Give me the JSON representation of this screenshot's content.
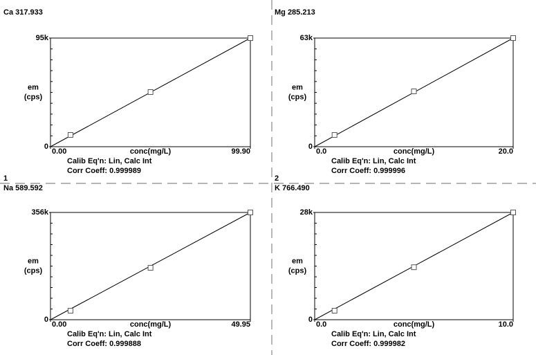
{
  "panel_numbers": [
    "1",
    "2"
  ],
  "chart_data": [
    {
      "type": "scatter",
      "title": "Ca 317.933",
      "xlabel": "conc(mg/L)",
      "ylabel": [
        "em",
        "(cps)"
      ],
      "annotations": [
        "Calib Eq'n: Lin, Calc Int",
        "Corr Coeff: 0.999989"
      ],
      "xlim": [
        0,
        99.9
      ],
      "xticks": [
        {
          "value": 0,
          "label": "0.00"
        },
        {
          "value": 99.9,
          "label": "99.90"
        }
      ],
      "ylim": [
        0,
        95000
      ],
      "yticks": [
        0,
        {
          "value": 95000,
          "label": "95k"
        }
      ],
      "x": [
        10,
        50,
        99.9
      ],
      "values": [
        10300,
        47800,
        95000
      ],
      "fit_line": {
        "x": [
          0,
          99.9
        ],
        "values": [
          0,
          95000
        ]
      }
    },
    {
      "type": "scatter",
      "title": "Mg 285.213",
      "xlabel": "conc(mg/L)",
      "ylabel": [
        "em",
        "(cps)"
      ],
      "annotations": [
        "Calib Eq'n: Lin, Calc Int",
        "Corr Coeff: 0.999996"
      ],
      "xlim": [
        0,
        20
      ],
      "xticks": [
        {
          "value": 0,
          "label": "0.0"
        },
        {
          "value": 20,
          "label": "20.0"
        }
      ],
      "ylim": [
        0,
        63000
      ],
      "yticks": [
        0,
        {
          "value": 63000,
          "label": "63k"
        }
      ],
      "x": [
        2,
        10,
        20
      ],
      "values": [
        6800,
        32100,
        63000
      ],
      "fit_line": {
        "x": [
          0,
          20
        ],
        "values": [
          0,
          63000
        ]
      }
    },
    {
      "type": "scatter",
      "title": "Na 589.592",
      "xlabel": "conc(mg/L)",
      "ylabel": [
        "em",
        "(cps)"
      ],
      "annotations": [
        "Calib Eq'n: Lin, Calc Int",
        "Corr Coeff: 0.999888"
      ],
      "xlim": [
        0,
        49.95
      ],
      "xticks": [
        {
          "value": 0,
          "label": "0.00"
        },
        {
          "value": 49.95,
          "label": "49.95"
        }
      ],
      "ylim": [
        0,
        356000
      ],
      "yticks": [
        0,
        {
          "value": 356000,
          "label": "356k"
        }
      ],
      "x": [
        5,
        25,
        49.95
      ],
      "values": [
        29900,
        172300,
        356000
      ],
      "fit_line": {
        "x": [
          0,
          49.95
        ],
        "values": [
          0,
          356000
        ]
      }
    },
    {
      "type": "scatter",
      "title": "K 766.490",
      "xlabel": "conc(mg/L)",
      "ylabel": [
        "em",
        "(cps)"
      ],
      "annotations": [
        "Calib Eq'n: Lin, Calc Int",
        "Corr Coeff: 0.999982"
      ],
      "xlim": [
        0,
        10
      ],
      "xticks": [
        {
          "value": 0,
          "label": "0.0"
        },
        {
          "value": 10,
          "label": "10.0"
        }
      ],
      "ylim": [
        0,
        28000
      ],
      "yticks": [
        0,
        {
          "value": 28000,
          "label": "28k"
        }
      ],
      "x": [
        1,
        5,
        10
      ],
      "values": [
        2350,
        13700,
        28000
      ],
      "fit_line": {
        "x": [
          0,
          10
        ],
        "values": [
          0,
          28000
        ]
      }
    }
  ]
}
